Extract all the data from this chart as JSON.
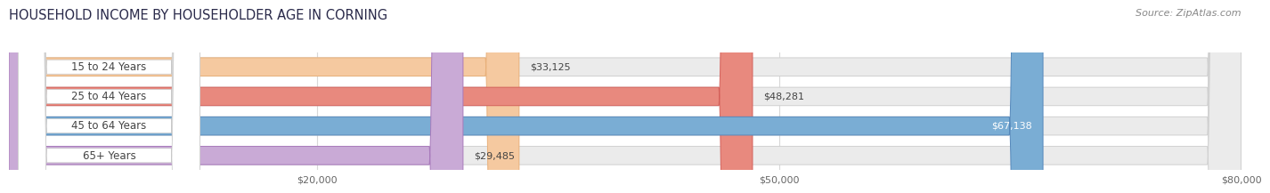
{
  "title": "HOUSEHOLD INCOME BY HOUSEHOLDER AGE IN CORNING",
  "source": "Source: ZipAtlas.com",
  "categories": [
    "15 to 24 Years",
    "25 to 44 Years",
    "45 to 64 Years",
    "65+ Years"
  ],
  "values": [
    33125,
    48281,
    67138,
    29485
  ],
  "value_labels": [
    "$33,125",
    "$48,281",
    "$67,138",
    "$29,485"
  ],
  "bar_colors": [
    "#f5c9a0",
    "#e8897e",
    "#7aadd4",
    "#c9aad6"
  ],
  "bar_edge_colors": [
    "#e8b07a",
    "#d4605a",
    "#5588bb",
    "#a87abb"
  ],
  "track_color": "#ebebeb",
  "track_edge_color": "#d0d0d0",
  "label_bg_color": "#ffffff",
  "label_text_color": "#444444",
  "xmin": 0,
  "xmax": 80000,
  "xticks": [
    20000,
    50000,
    80000
  ],
  "xticklabels": [
    "$20,000",
    "$50,000",
    "$80,000"
  ],
  "title_fontsize": 10.5,
  "source_fontsize": 8,
  "label_fontsize": 8.5,
  "value_fontsize": 8,
  "tick_fontsize": 8,
  "bar_height": 0.62,
  "background_color": "#ffffff",
  "grid_color": "#d8d8d8",
  "value_inside_threshold": 60000
}
